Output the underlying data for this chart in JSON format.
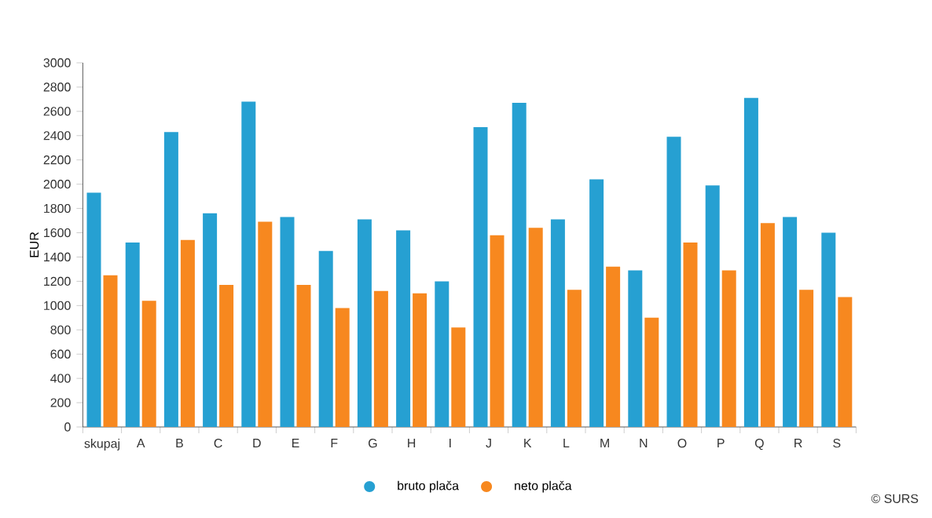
{
  "chart_data": {
    "type": "bar",
    "ylabel": "EUR",
    "categories": [
      "skupaj",
      "A",
      "B",
      "C",
      "D",
      "E",
      "F",
      "G",
      "H",
      "I",
      "J",
      "K",
      "L",
      "M",
      "N",
      "O",
      "P",
      "Q",
      "R",
      "S"
    ],
    "series": [
      {
        "name": "bruto plača",
        "color": "#26a0d2",
        "values": [
          1930,
          1520,
          2430,
          1760,
          2680,
          1730,
          1450,
          1710,
          1620,
          1200,
          2470,
          2670,
          1710,
          2040,
          1290,
          2390,
          1990,
          2710,
          1730,
          1600
        ]
      },
      {
        "name": "neto plača",
        "color": "#f7881f",
        "values": [
          1250,
          1040,
          1540,
          1170,
          1690,
          1170,
          980,
          1120,
          1100,
          820,
          1580,
          1640,
          1130,
          1320,
          900,
          1520,
          1290,
          1680,
          1130,
          1070
        ]
      }
    ],
    "ylim": [
      0,
      3000
    ],
    "yticks": [
      0,
      200,
      400,
      600,
      800,
      1000,
      1200,
      1400,
      1600,
      1800,
      2000,
      2200,
      2400,
      2600,
      2800,
      3000
    ],
    "grid": false,
    "legend": "bottom",
    "annotations": [
      "© SURS"
    ]
  }
}
